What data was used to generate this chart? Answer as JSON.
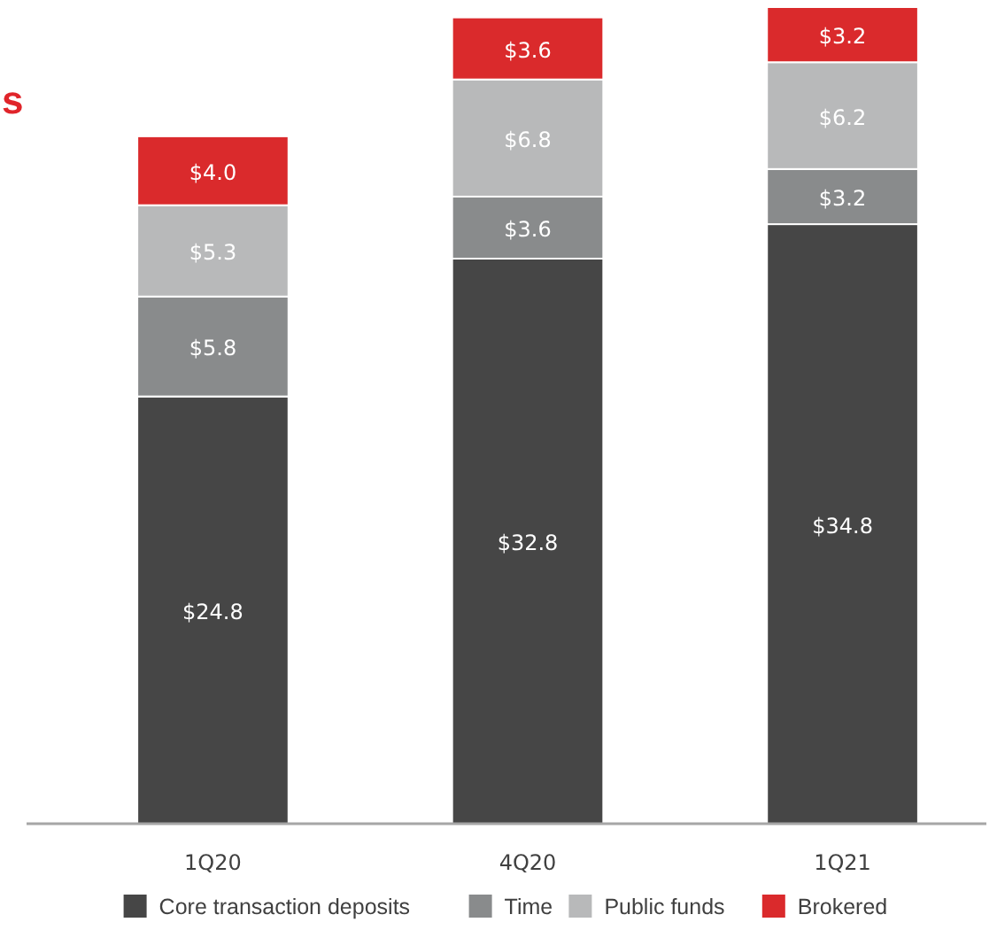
{
  "chart_data": {
    "type": "bar",
    "stacked": true,
    "legend": "bottom",
    "categories": [
      "1Q20",
      "4Q20",
      "1Q21"
    ],
    "annotations": [
      "s"
    ],
    "series": [
      {
        "name": "Core transaction deposits",
        "color": "#464646",
        "values": [
          24.8,
          32.8,
          34.8
        ],
        "value_labels": [
          "$24.8",
          "$32.8",
          "$34.8"
        ]
      },
      {
        "name": "Time",
        "color": "#898b8c",
        "values": [
          5.8,
          3.6,
          3.2
        ],
        "value_labels": [
          "$5.8",
          "$3.6",
          "$3.2"
        ]
      },
      {
        "name": "Public funds",
        "color": "#b8b9ba",
        "values": [
          5.3,
          6.8,
          6.2
        ],
        "value_labels": [
          "$5.3",
          "$6.8",
          "$6.2"
        ]
      },
      {
        "name": "Brokered",
        "color": "#da2a2c",
        "values": [
          4.0,
          3.6,
          3.2
        ],
        "value_labels": [
          "$4.0",
          "$3.6",
          "$3.2"
        ]
      }
    ]
  }
}
